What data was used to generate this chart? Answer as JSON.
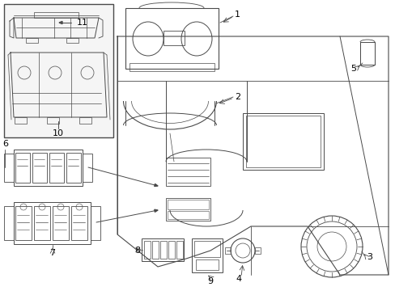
{
  "bg_color": "#ffffff",
  "line_color": "#4a4a4a",
  "label_color": "#000000",
  "fig_width": 4.89,
  "fig_height": 3.6,
  "dpi": 100
}
